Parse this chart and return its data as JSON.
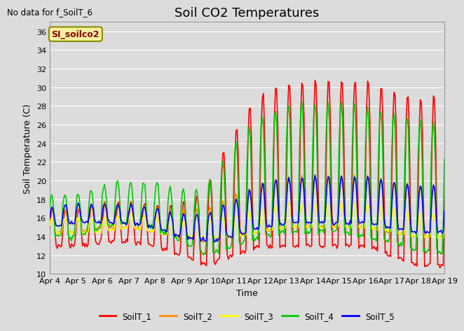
{
  "title": "Soil CO2 Temperatures",
  "xlabel": "Time",
  "ylabel": "Soil Temperature (C)",
  "annotation_text": "No data for f_SoilT_6",
  "legend_label": "SI_soilco2",
  "series_labels": [
    "SoilT_1",
    "SoilT_2",
    "SoilT_3",
    "SoilT_4",
    "SoilT_5"
  ],
  "series_colors": [
    "#ff0000",
    "#ff8c00",
    "#ffff00",
    "#00cc00",
    "#0000ff"
  ],
  "ylim": [
    10,
    37
  ],
  "yticks": [
    10,
    12,
    14,
    16,
    18,
    20,
    22,
    24,
    26,
    28,
    30,
    32,
    34,
    36
  ],
  "xtick_labels": [
    "Apr 4",
    "Apr 5",
    "Apr 6",
    "Apr 7",
    "Apr 8",
    "Apr 9",
    "Apr 10",
    "Apr 11",
    "Apr 12",
    "Apr 13",
    "Apr 14",
    "Apr 15",
    "Apr 16",
    "Apr 17",
    "Apr 18",
    "Apr 19"
  ],
  "background_color": "#dcdcdc",
  "plot_bg_color": "#dcdcdc",
  "grid_color": "#ffffff",
  "linewidth": 1.2,
  "title_fontsize": 13,
  "axis_fontsize": 9,
  "tick_fontsize": 8
}
